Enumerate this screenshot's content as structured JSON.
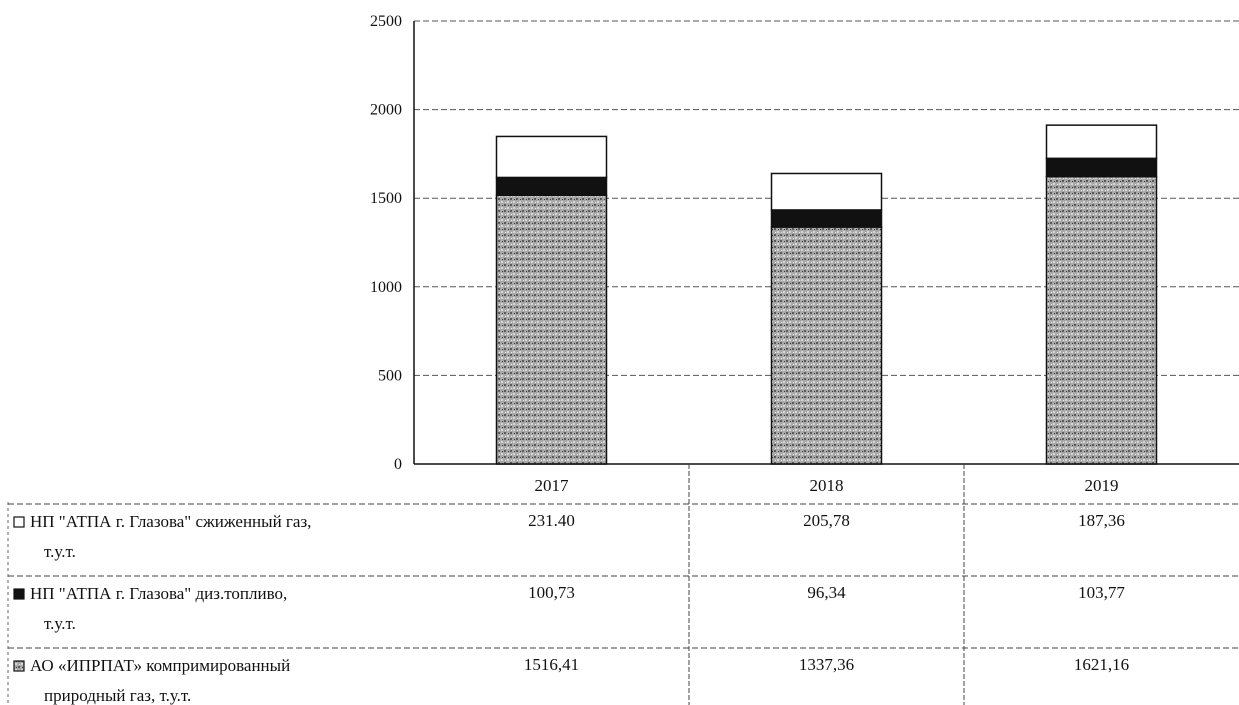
{
  "chart_data": {
    "type": "bar",
    "stacked": true,
    "categories": [
      "2017",
      "2018",
      "2019"
    ],
    "series": [
      {
        "name": "АО «ИПРПАТ» компримированный природный газ, т.у.т.",
        "legend_lines": [
          "АО «ИПРПАТ» компримированный",
          "природный газ, т.у.т."
        ],
        "values": [
          1516.41,
          1337.36,
          1621.16
        ],
        "value_labels": [
          "1516,41",
          "1337,36",
          "1621,16"
        ],
        "color": "#9a9a9a",
        "pattern": "dotted-gray"
      },
      {
        "name": "НП \"АТПА г. Глазова\" диз.топливо, т.у.т.",
        "legend_lines": [
          "НП \"АТПА г. Глазова\" диз.топливо,",
          "т.у.т."
        ],
        "values": [
          100.73,
          96.34,
          103.77
        ],
        "value_labels": [
          "100,73",
          "96,34",
          "103,77"
        ],
        "color": "#111111",
        "pattern": "solid"
      },
      {
        "name": "НП \"АТПА г. Глазова\" сжиженный газ, т.у.т.",
        "legend_lines": [
          "НП \"АТПА г. Глазова\" сжиженный газ,",
          "т.у.т."
        ],
        "values": [
          231.4,
          205.78,
          187.36
        ],
        "value_labels": [
          "231.40",
          "205,78",
          "187,36"
        ],
        "color": "#ffffff",
        "pattern": "none"
      }
    ],
    "table_row_order": [
      2,
      1,
      0
    ],
    "ylim": [
      0,
      2500
    ],
    "yticks": [
      "0",
      "500",
      "1000",
      "1500",
      "2000",
      "2500"
    ],
    "grid": true,
    "legend": "data-table-below"
  }
}
